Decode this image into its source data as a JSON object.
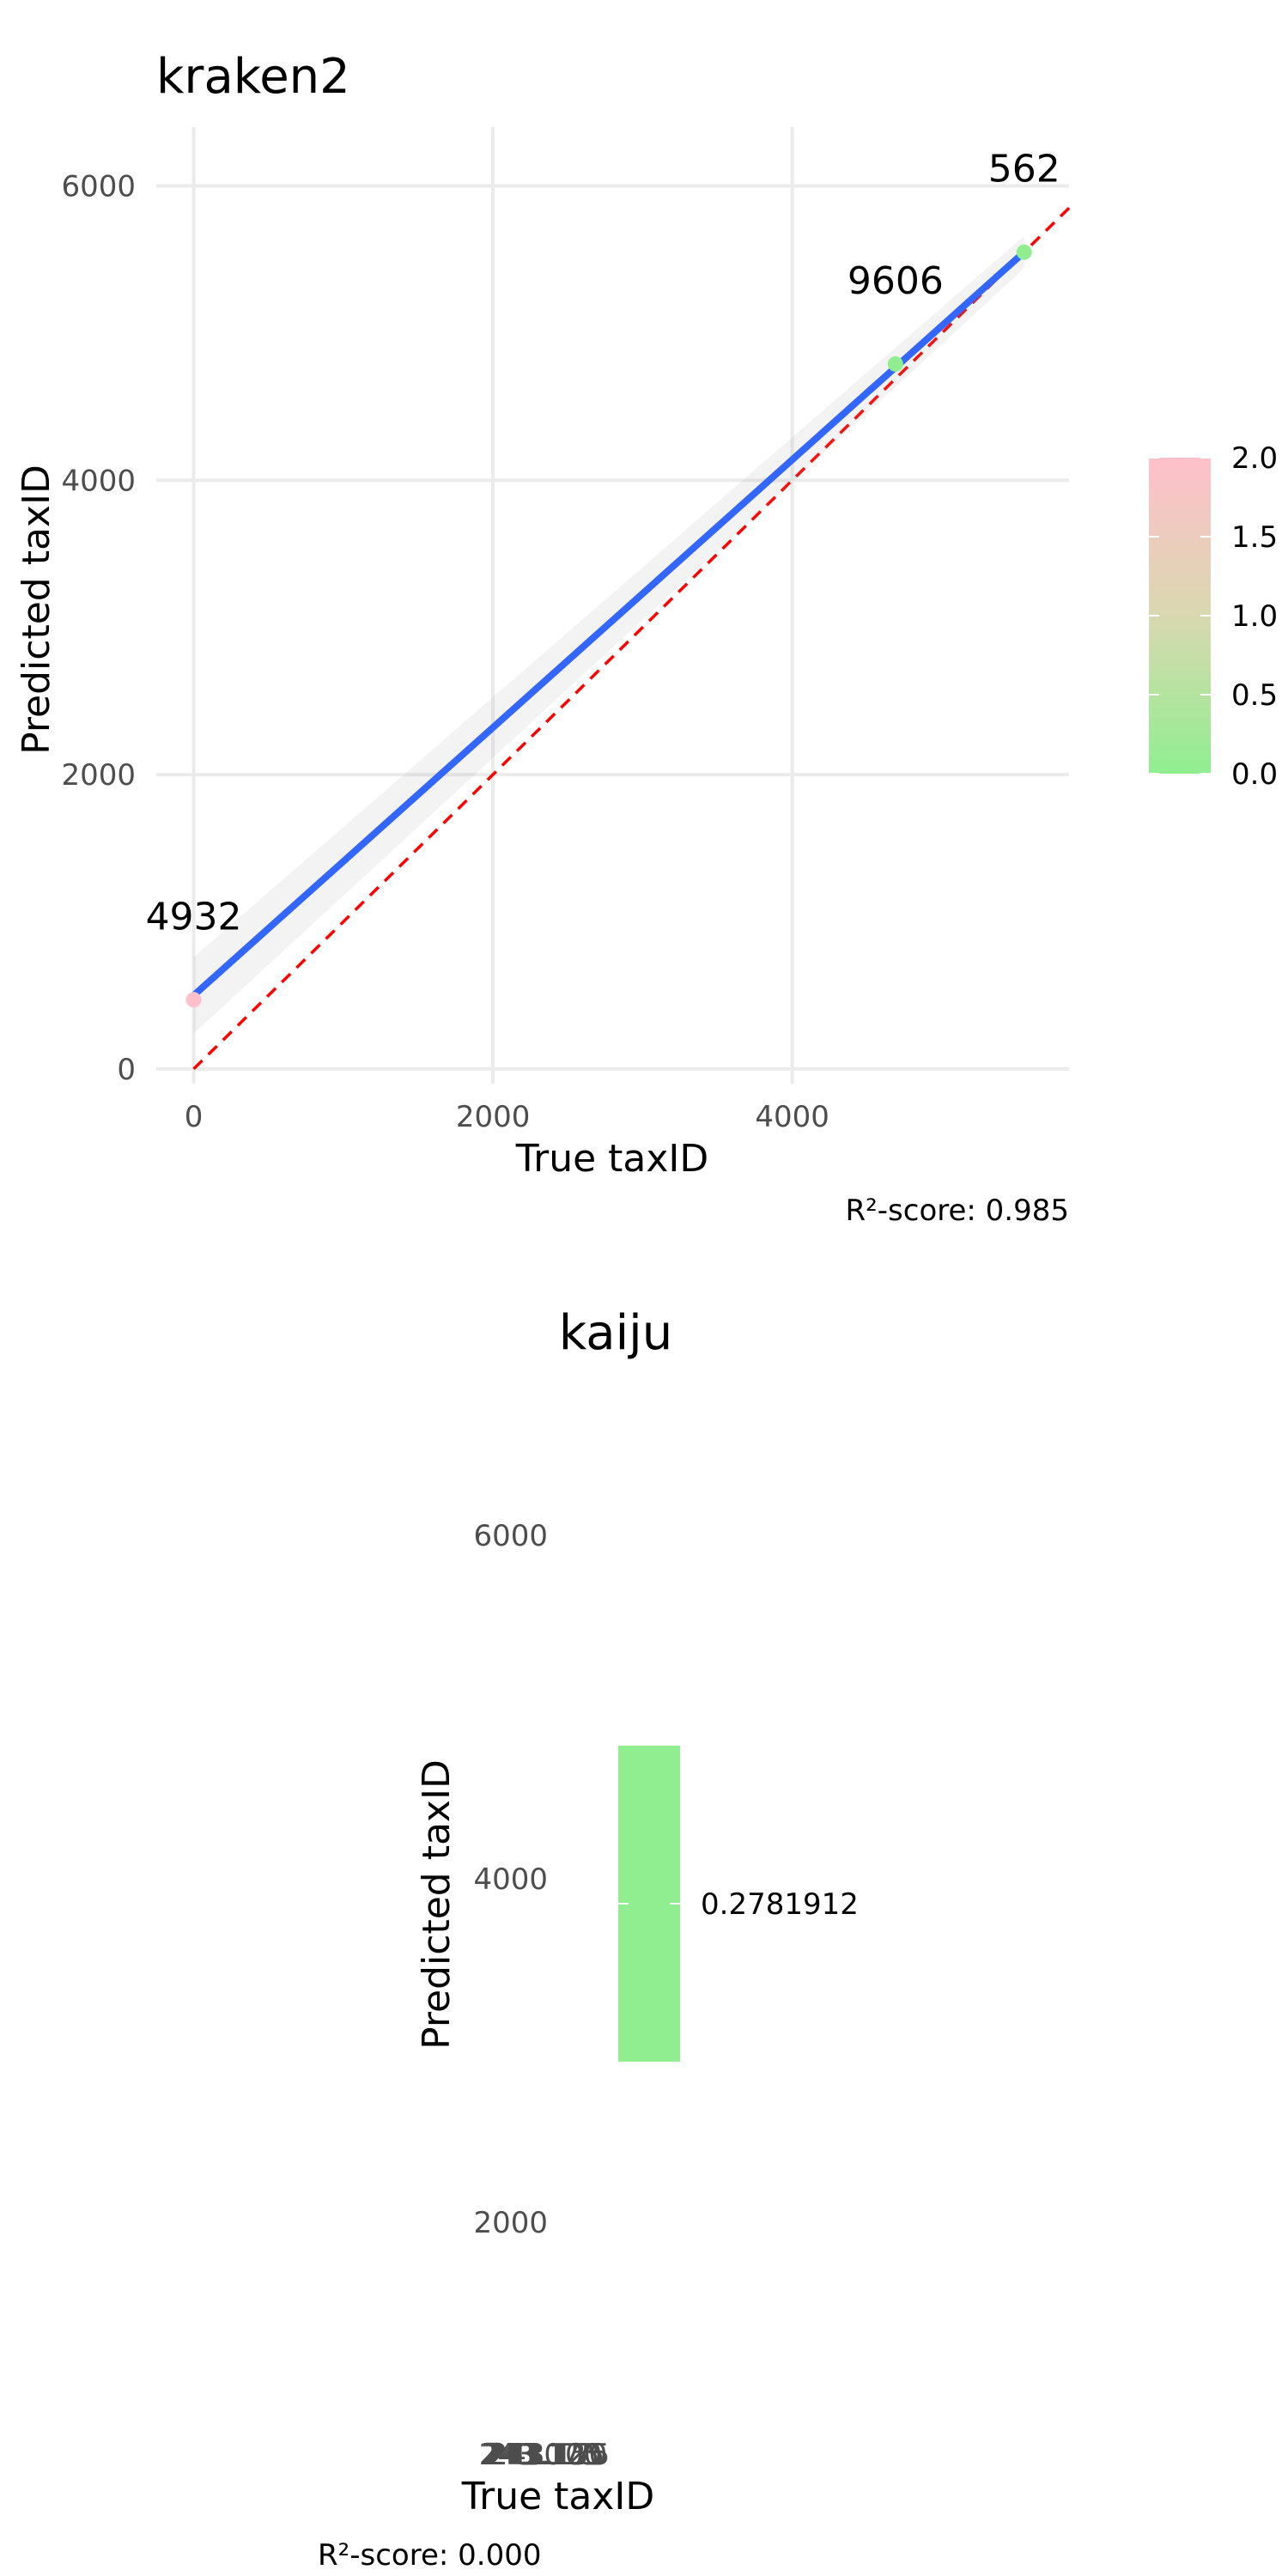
{
  "chart_data": [
    {
      "type": "scatter",
      "title": "kraken2",
      "xlabel": "True taxID",
      "ylabel": "Predicted taxID",
      "xlim": [
        -250,
        5850
      ],
      "ylim": [
        -100,
        6400
      ],
      "x_ticks": [
        "0",
        "2000",
        "4000"
      ],
      "x_tick_values": [
        0,
        2000,
        4000
      ],
      "y_ticks": [
        "0",
        "2000",
        "4000",
        "6000"
      ],
      "y_tick_values": [
        0,
        2000,
        4000,
        6000
      ],
      "grid": true,
      "points": [
        {
          "x": 0,
          "y": 470,
          "label": "4932",
          "color_value": 2.0
        },
        {
          "x": 4690,
          "y": 4790,
          "label": "9606",
          "color_value": 0.0
        },
        {
          "x": 5550,
          "y": 5550,
          "label": "562",
          "color_value": 0.0
        }
      ],
      "fit_line": {
        "x": [
          0,
          5550
        ],
        "y": [
          500,
          5550
        ],
        "color": "#3366FF"
      },
      "identity_line": {
        "color": "#FF0000",
        "style": "dashed"
      },
      "legend": {
        "type": "colorbar",
        "position": "right",
        "ticks": [
          "0.0",
          "0.5",
          "1.0",
          "1.5",
          "2.0"
        ],
        "tick_values": [
          0,
          0.5,
          1.0,
          1.5,
          2.0
        ],
        "low_color": "#90EE90",
        "high_color": "#FFC0CB"
      },
      "caption": "R²-score: 0.985"
    },
    {
      "type": "scatter",
      "title": "kaiju",
      "xlabel": "True taxID",
      "ylabel": "Predicted taxID",
      "ylim": [
        1000,
        6400
      ],
      "y_ticks": [
        "2000",
        "4000",
        "6000"
      ],
      "y_tick_values": [
        2000,
        4000,
        6000
      ],
      "x_tick_overlap": [
        "243.075",
        "243.100",
        "243.125",
        "243.150",
        "243.175"
      ],
      "points": [],
      "legend": {
        "type": "colorbar",
        "position": "right",
        "ticks": [
          "0.2781912"
        ],
        "tick_values": [
          0.2781912
        ],
        "color": "#90EE90"
      },
      "caption": "R²-score: 0.000"
    }
  ]
}
